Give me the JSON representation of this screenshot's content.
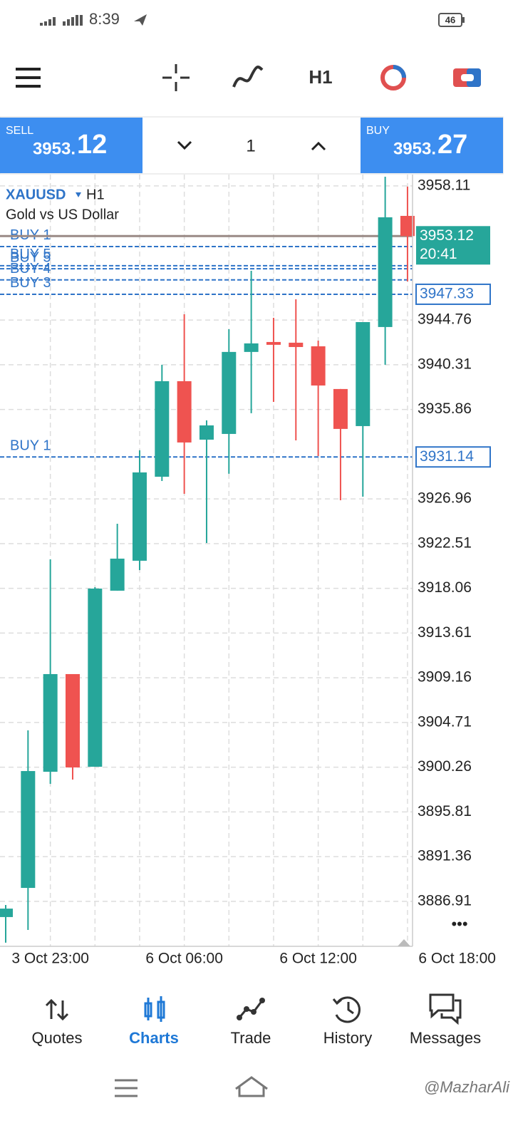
{
  "status_bar": {
    "time": "8:39",
    "battery": "46"
  },
  "toolbar": {
    "timeframe": "H1"
  },
  "trade_panel": {
    "sell": {
      "label": "SELL",
      "price_prefix": "3953.",
      "price_suffix": "12"
    },
    "volume": "1",
    "buy": {
      "label": "BUY",
      "price_prefix": "3953.",
      "price_suffix": "27"
    }
  },
  "chart_data": {
    "type": "candlestick",
    "symbol": "XAUUSD",
    "timeframe": "H1",
    "description": "Gold vs US Dollar",
    "categories": [
      null,
      null,
      "3 Oct 23:00",
      null,
      null,
      null,
      null,
      null,
      "6 Oct 06:00",
      null,
      null,
      null,
      null,
      null,
      "6 Oct 12:00",
      null,
      null,
      null,
      null
    ],
    "x_end_label": "6 Oct 18:00",
    "open": [
      3885.35,
      3888.25,
      3899.81,
      3909.53,
      3900.31,
      3917.83,
      3920.81,
      3929.17,
      3938.68,
      3932.86,
      3933.43,
      3941.59,
      3942.58,
      3942.51,
      3942.15,
      3937.9,
      3934.21,
      3944.07,
      3955.13
    ],
    "high": [
      3886.55,
      3903.93,
      3920.95,
      3909.53,
      3918.18,
      3924.49,
      3931.8,
      3940.31,
      3945.34,
      3934.78,
      3943.85,
      3949.67,
      3944.99,
      3946.83,
      3942.72,
      3937.9,
      3944.56,
      3959.03,
      3958.04
    ],
    "low": [
      3882.8,
      3884.07,
      3898.61,
      3899.03,
      3900.31,
      3917.83,
      3919.88,
      3928.75,
      3927.47,
      3922.58,
      3929.46,
      3935.49,
      3936.62,
      3932.79,
      3931.23,
      3926.83,
      3927.19,
      3940.31,
      3948.61
    ],
    "close": [
      3886.19,
      3899.88,
      3909.53,
      3900.24,
      3918.04,
      3921.02,
      3929.6,
      3938.68,
      3932.58,
      3934.28,
      3941.59,
      3942.44,
      3942.3,
      3942.08,
      3938.25,
      3933.93,
      3944.56,
      3954.99,
      3953.12
    ],
    "up_color": "#26a69a",
    "down_color": "#ef5350",
    "ylim": [
      3882.65,
      3959.24
    ],
    "yticks": [
      3958.11,
      3944.76,
      3940.31,
      3935.86,
      3926.96,
      3922.51,
      3918.06,
      3913.61,
      3909.16,
      3904.71,
      3900.26,
      3895.81,
      3891.36,
      3886.91
    ],
    "grid": true,
    "bid": {
      "price": 3953.12,
      "timer": "20:41",
      "color": "#26a69a"
    },
    "orders": [
      {
        "name": "BUY 1",
        "price": 3952.08,
        "price_tag": false
      },
      {
        "name": "BUY 5",
        "price": 3950.17,
        "price_tag": false
      },
      {
        "name": "BUY 5",
        "price": 3949.87,
        "price_tag": false
      },
      {
        "name": "BUY 4",
        "price": 3948.76,
        "price_tag": false
      },
      {
        "name": "BUY 3",
        "price": 3947.33,
        "price_tag": true
      },
      {
        "name": "BUY 1",
        "price": 3931.14,
        "price_tag": true
      }
    ],
    "order_color": "#2f74c8",
    "more": "•••"
  },
  "nav": {
    "items": [
      "Quotes",
      "Charts",
      "Trade",
      "History",
      "Messages"
    ],
    "active": 1
  },
  "watermark": "@MazharAli"
}
